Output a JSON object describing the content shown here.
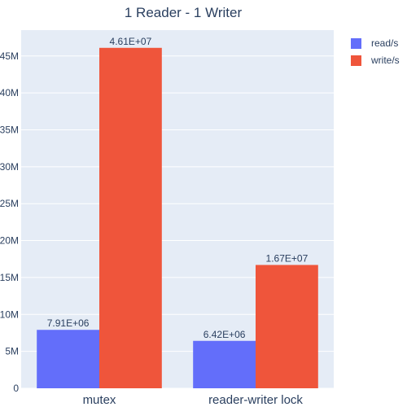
{
  "chart_data": {
    "type": "bar",
    "title": "1 Reader - 1 Writer",
    "categories": [
      "mutex",
      "reader-writer lock"
    ],
    "series": [
      {
        "name": "read/s",
        "values": [
          7910000,
          6420000
        ],
        "labels": [
          "7.91E+06",
          "6.42E+06"
        ],
        "color": "#636efa"
      },
      {
        "name": "write/s",
        "values": [
          46100000,
          16700000
        ],
        "labels": [
          "4.61E+07",
          "1.67E+07"
        ],
        "color": "#ef553b"
      }
    ],
    "ylim": [
      0,
      48500000
    ],
    "yticks": [
      0,
      5000000,
      10000000,
      15000000,
      20000000,
      25000000,
      30000000,
      35000000,
      40000000,
      45000000
    ],
    "ytick_labels": [
      "0",
      "5M",
      "10M",
      "15M",
      "20M",
      "25M",
      "30M",
      "35M",
      "40M",
      "45M"
    ],
    "xlabel": "",
    "ylabel": "",
    "grid": true,
    "legend_position": "top-right",
    "plot_background": "#e5ecf6",
    "text_color": "#2a3f5f"
  }
}
